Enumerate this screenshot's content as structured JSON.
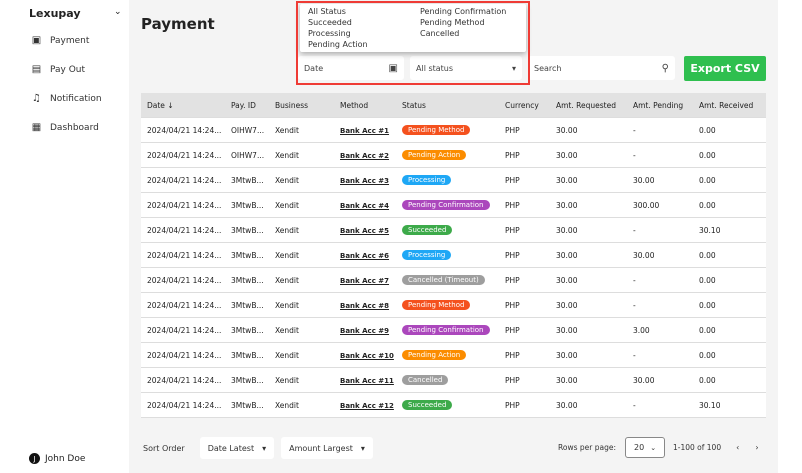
{
  "sidebar": {
    "brand": "Lexupay",
    "items": [
      {
        "label": "Payment",
        "icon": "payment-icon"
      },
      {
        "label": "Pay Out",
        "icon": "document-icon"
      },
      {
        "label": "Notification",
        "icon": "bell-icon"
      },
      {
        "label": "Dashboard",
        "icon": "dashboard-icon"
      }
    ],
    "user": {
      "initial": "J",
      "name": "John Doe"
    }
  },
  "header": {
    "title": "Payment"
  },
  "filters": {
    "date_placeholder": "Date",
    "status_value": "All status",
    "search_placeholder": "Search",
    "export_label": "Export CSV"
  },
  "status_options": [
    "All Status",
    "Succeeded",
    "Processing",
    "Pending Action",
    "Pending Confirmation",
    "Pending Method",
    "Cancelled"
  ],
  "status_colors": {
    "Pending Method": "#f4511e",
    "Pending Action": "#fb8c00",
    "Processing": "#1ea7f5",
    "Pending Confirmation": "#ab47bc",
    "Succeeded": "#3daa4a",
    "Cancelled": "#9e9e9e",
    "Cancelled (Timeout)": "#9e9e9e"
  },
  "table": {
    "columns": [
      "Date",
      "Pay. ID",
      "Business",
      "Method",
      "Status",
      "Currency",
      "Amt. Requested",
      "Amt. Pending",
      "Amt. Received"
    ],
    "rows": [
      [
        "2024/04/21 14:24...",
        "OIHW7...",
        "Xendit",
        "Bank Acc #1",
        "Pending Method",
        "PHP",
        "30.00",
        "-",
        "0.00"
      ],
      [
        "2024/04/21 14:24...",
        "OIHW7...",
        "Xendit",
        "Bank Acc #2",
        "Pending Action",
        "PHP",
        "30.00",
        "-",
        "0.00"
      ],
      [
        "2024/04/21 14:24...",
        "3MtwB...",
        "Xendit",
        "Bank Acc #3",
        "Processing",
        "PHP",
        "30.00",
        "30.00",
        "0.00"
      ],
      [
        "2024/04/21 14:24...",
        "3MtwB...",
        "Xendit",
        "Bank Acc #4",
        "Pending Confirmation",
        "PHP",
        "30.00",
        "300.00",
        "0.00"
      ],
      [
        "2024/04/21 14:24...",
        "3MtwB...",
        "Xendit",
        "Bank Acc #5",
        "Succeeded",
        "PHP",
        "30.00",
        "-",
        "30.10"
      ],
      [
        "2024/04/21 14:24...",
        "3MtwB...",
        "Xendit",
        "Bank Acc #6",
        "Processing",
        "PHP",
        "30.00",
        "30.00",
        "0.00"
      ],
      [
        "2024/04/21 14:24...",
        "3MtwB...",
        "Xendit",
        "Bank Acc #7",
        "Cancelled (Timeout)",
        "PHP",
        "30.00",
        "-",
        "0.00"
      ],
      [
        "2024/04/21 14:24...",
        "3MtwB...",
        "Xendit",
        "Bank Acc #8",
        "Pending Method",
        "PHP",
        "30.00",
        "-",
        "0.00"
      ],
      [
        "2024/04/21 14:24...",
        "3MtwB...",
        "Xendit",
        "Bank Acc #9",
        "Pending Confirmation",
        "PHP",
        "30.00",
        "3.00",
        "0.00"
      ],
      [
        "2024/04/21 14:24...",
        "3MtwB...",
        "Xendit",
        "Bank Acc #10",
        "Pending Action",
        "PHP",
        "30.00",
        "-",
        "0.00"
      ],
      [
        "2024/04/21 14:24...",
        "3MtwB...",
        "Xendit",
        "Bank Acc #11",
        "Cancelled",
        "PHP",
        "30.00",
        "30.00",
        "0.00"
      ],
      [
        "2024/04/21 14:24...",
        "3MtwB...",
        "Xendit",
        "Bank Acc #12",
        "Succeeded",
        "PHP",
        "30.00",
        "-",
        "30.10"
      ]
    ]
  },
  "footer": {
    "sort_label": "Sort Order",
    "sort_date": "Date Latest",
    "sort_amount": "Amount Largest",
    "rows_per_page_label": "Rows per page:",
    "rows_per_page": "20",
    "range": "1-100 of 100"
  }
}
